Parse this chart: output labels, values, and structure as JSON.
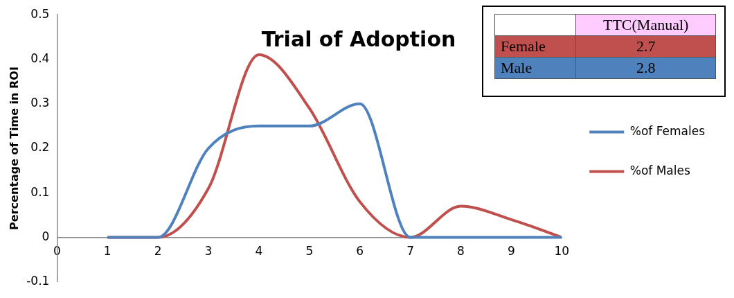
{
  "chart_data": [
    {
      "type": "line",
      "title": "Trial of Adoption",
      "ylabel": "Percentage of Time in ROI",
      "x": [
        1,
        2,
        3,
        4,
        5,
        6,
        7,
        8,
        9,
        10
      ],
      "series": [
        {
          "name": "%of Females",
          "color": "#4f81bd",
          "values": [
            0,
            0,
            0.2,
            0.25,
            0.25,
            0.3,
            0,
            0,
            0,
            0
          ]
        },
        {
          "name": "%of Males",
          "color": "#c0504d",
          "values": [
            0,
            0,
            0.11,
            0.41,
            0.29,
            0.08,
            0,
            0.07,
            0.04,
            0
          ]
        }
      ],
      "xlim": [
        0,
        10
      ],
      "xticks": [
        0,
        1,
        2,
        3,
        4,
        5,
        6,
        7,
        8,
        9,
        10
      ],
      "ylim": [
        -0.1,
        0.5
      ],
      "yticks": [
        -0.1,
        0,
        0.1,
        0.2,
        0.3,
        0.4,
        0.5
      ],
      "grid": false,
      "legend": "right",
      "marker": "none",
      "line_style": "solid"
    },
    {
      "type": "other",
      "title": "TTC(Manual)",
      "categories": [
        "Female",
        "Male"
      ],
      "values": [
        2.7,
        2.8
      ],
      "data_labels": true,
      "colors": [
        "#c0504d",
        "#4f81bd"
      ]
    }
  ]
}
